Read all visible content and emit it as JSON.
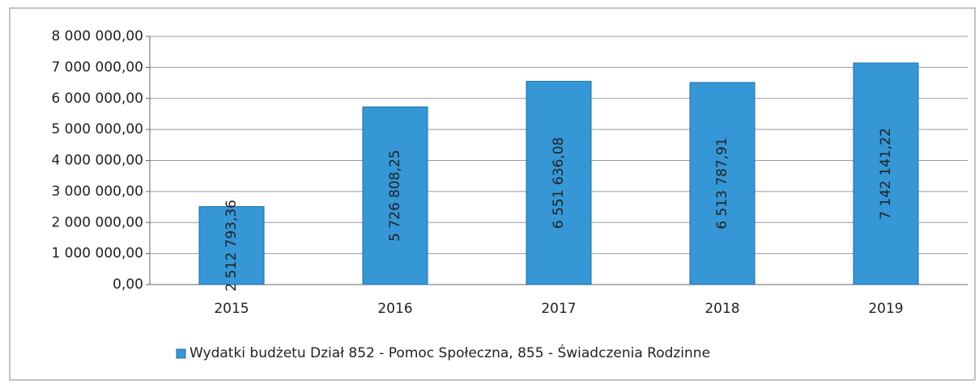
{
  "chart_data": {
    "type": "bar",
    "categories": [
      "2015",
      "2016",
      "2017",
      "2018",
      "2019"
    ],
    "series": [
      {
        "name": "Wydatki budżetu Dział 852 - Pomoc Społeczna, 855 - Świadczenia Rodzinne",
        "color": "#3597d6",
        "values": [
          2512793.36,
          5726808.25,
          6551636.08,
          6513787.91,
          7142141.22
        ],
        "value_labels": [
          "2 512 793,36",
          "5 726 808,25",
          "6 551 636,08",
          "6 513 787,91",
          "7 142 141,22"
        ]
      }
    ],
    "ylim": [
      0,
      8000000
    ],
    "yticks": [
      {
        "value": 0,
        "label": "0,00"
      },
      {
        "value": 1000000,
        "label": "1 000 000,00"
      },
      {
        "value": 2000000,
        "label": "2 000 000,00"
      },
      {
        "value": 3000000,
        "label": "3 000 000,00"
      },
      {
        "value": 4000000,
        "label": "4 000 000,00"
      },
      {
        "value": 5000000,
        "label": "5 000 000,00"
      },
      {
        "value": 6000000,
        "label": "6 000 000,00"
      },
      {
        "value": 7000000,
        "label": "7 000 000,00"
      },
      {
        "value": 8000000,
        "label": "8 000 000,00"
      }
    ],
    "grid": true,
    "legend": "bottom"
  }
}
